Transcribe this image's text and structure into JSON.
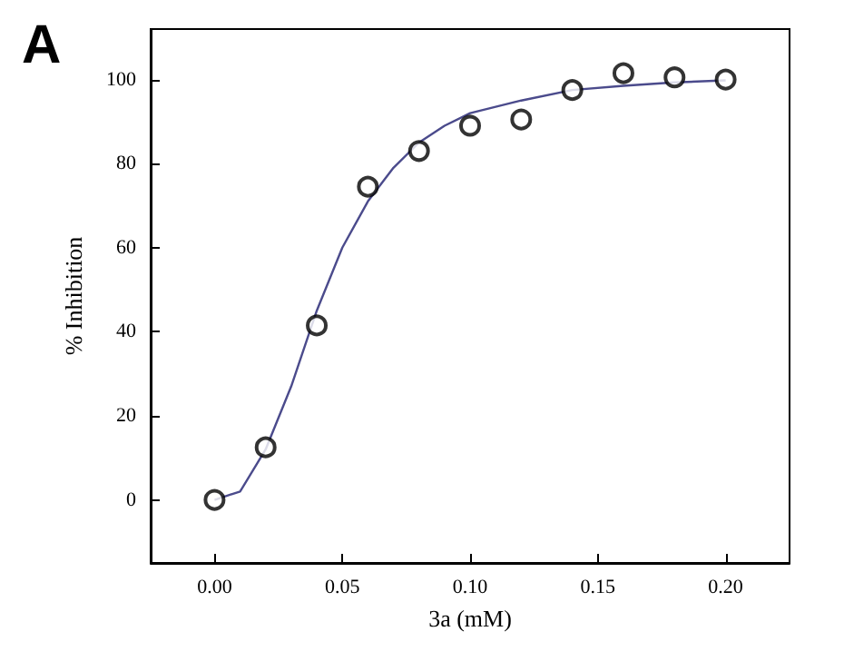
{
  "chart_data": {
    "type": "scatter",
    "xlabel": "3a (mM)",
    "ylabel": "% Inhibition",
    "annotations": [
      "A"
    ],
    "xlim": [
      -0.025,
      0.225
    ],
    "ylim": [
      -15,
      112
    ],
    "xticks": [
      {
        "value": 0,
        "label": "0.00"
      },
      0.05,
      {
        "value": 0.1,
        "label": "0.10"
      },
      0.15,
      {
        "value": 0.2,
        "label": "0.20"
      }
    ],
    "yticks": [
      0,
      20,
      40,
      60,
      80,
      100
    ],
    "grid": false,
    "series": [
      {
        "color": "#000000",
        "marker": "circle",
        "x": [
          0,
          0.02,
          0.04,
          0.06,
          0.08,
          0.1,
          0.12,
          0.14,
          0.16,
          0.18,
          0.2
        ],
        "values": [
          0,
          12.5,
          41.5,
          74.5,
          83,
          89,
          90.5,
          97.5,
          101.5,
          100.5,
          100
        ]
      },
      {
        "type": "line",
        "color": "#4b4b8c",
        "marker": "none",
        "line_style": "solid",
        "x": [
          0,
          0.01,
          0.02,
          0.03,
          0.04,
          0.05,
          0.06,
          0.07,
          0.08,
          0.09,
          0.1,
          0.12,
          0.14,
          0.16,
          0.18,
          0.2
        ],
        "values": [
          0,
          2,
          12,
          27,
          45,
          60,
          71,
          79,
          85,
          89,
          92,
          95,
          97.5,
          98.5,
          99.3,
          99.8
        ]
      }
    ]
  }
}
